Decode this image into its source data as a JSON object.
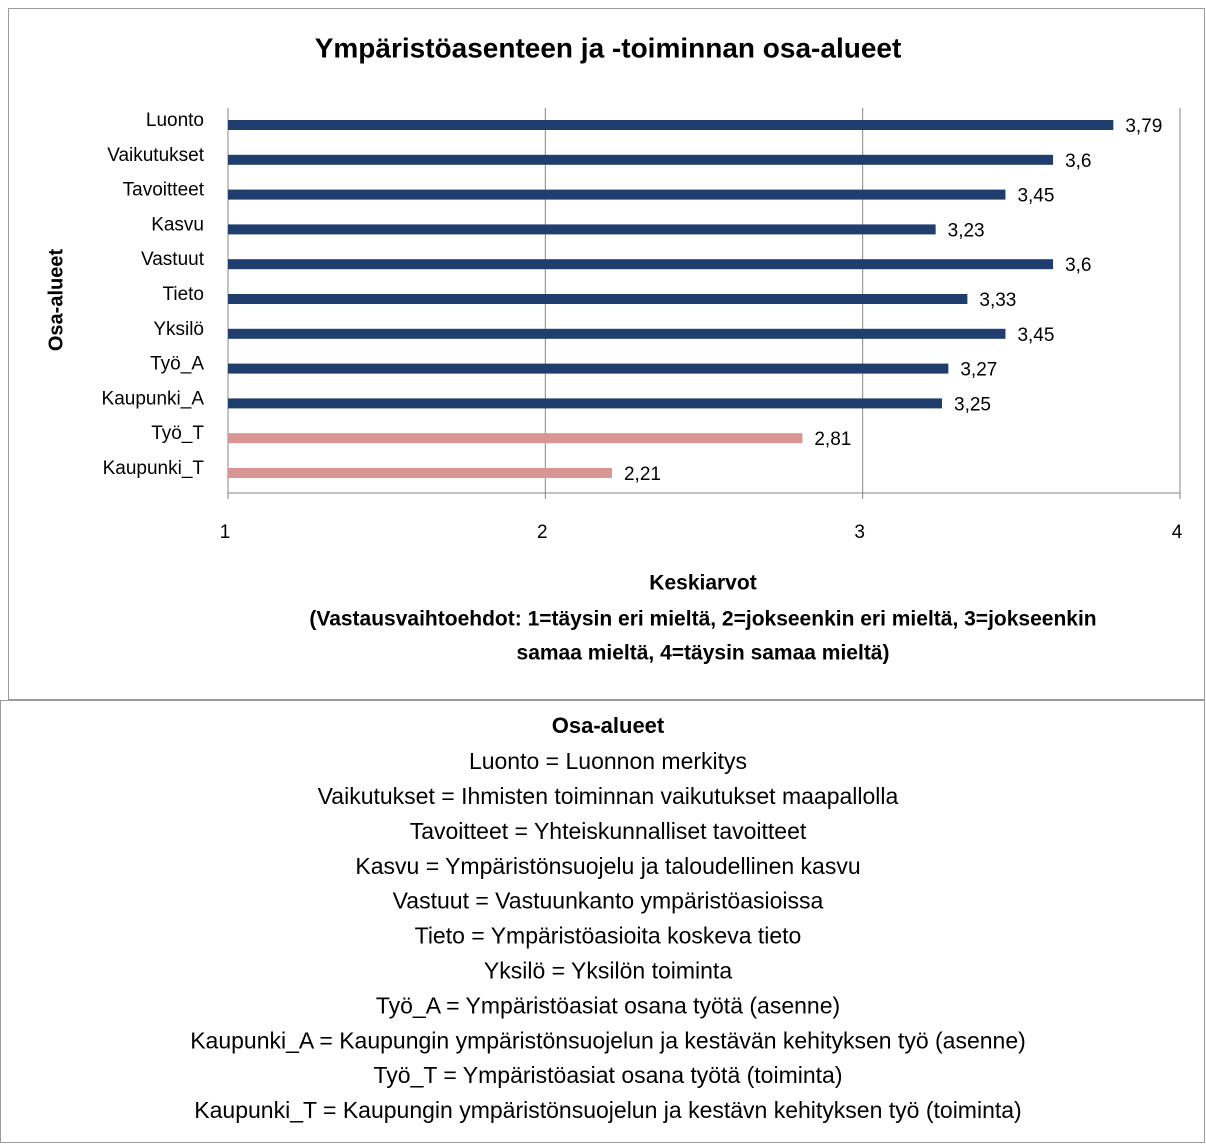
{
  "chart_data": {
    "type": "bar",
    "orientation": "horizontal",
    "title": "Ympäristöasenteen ja -toiminnan osa-alueet",
    "y_label": "Osa-alueet",
    "x_label": "Keskiarvot",
    "x_sublabel": [
      "(Vastausvaihtoehdot: 1=täysin eri mieltä, 2=jokseenkin eri mieltä, 3=jokseenkin",
      "samaa mieltä, 4=täysin samaa mieltä)"
    ],
    "categories": [
      "Luonto",
      "Vaikutukset",
      "Tavoitteet",
      "Kasvu",
      "Vastuut",
      "Tieto",
      "Yksilö",
      "Työ_A",
      "Kaupunki_A",
      "Työ_T",
      "Kaupunki_T"
    ],
    "values": [
      3.79,
      3.6,
      3.45,
      3.23,
      3.6,
      3.33,
      3.45,
      3.27,
      3.25,
      2.81,
      2.21
    ],
    "value_labels": [
      "3,79",
      "3,6",
      "3,45",
      "3,23",
      "3,6",
      "3,33",
      "3,45",
      "3,27",
      "3,25",
      "2,81",
      "2,21"
    ],
    "colors": [
      "#1f3e6e",
      "#1f3e6e",
      "#1f3e6e",
      "#1f3e6e",
      "#1f3e6e",
      "#1f3e6e",
      "#1f3e6e",
      "#1f3e6e",
      "#1f3e6e",
      "#d99594",
      "#d99594"
    ],
    "xlim": [
      1,
      4
    ],
    "xticks": [
      1,
      2,
      3,
      4
    ],
    "grid": true
  },
  "definitions": {
    "title": "Osa-alueet",
    "items": [
      "Luonto = Luonnon merkitys",
      "Vaikutukset = Ihmisten toiminnan vaikutukset maapallolla",
      "Tavoitteet = Yhteiskunnalliset tavoitteet",
      "Kasvu = Ympäristönsuojelu ja taloudellinen kasvu",
      "Vastuut = Vastuunkanto ympäristöasioissa",
      "Tieto = Ympäristöasioita koskeva tieto",
      "Yksilö = Yksilön toiminta",
      "Työ_A = Ympäristöasiat osana työtä (asenne)",
      "Kaupunki_A = Kaupungin ympäristönsuojelun ja kestävän kehityksen työ (asenne)",
      "Työ_T = Ympäristöasiat osana työtä (toiminta)",
      "Kaupunki_T = Kaupungin ympäristönsuojelun ja kestävn kehityksen työ (toiminta)"
    ]
  }
}
